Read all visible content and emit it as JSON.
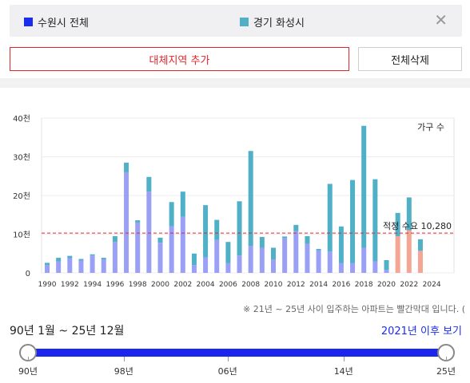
{
  "legend": {
    "items": [
      {
        "label": "수원시 전체",
        "color": "#1a2cf0"
      },
      {
        "label": "경기 화성시",
        "color": "#4fb0c6"
      }
    ],
    "close_icon": "close-icon"
  },
  "buttons": {
    "add_region": "대체지역 추가",
    "delete_all": "전체삭제"
  },
  "chart_data": {
    "type": "bar",
    "unit_label": "가구 수",
    "y_ticks": [
      "40천",
      "30천",
      "20천",
      "10천",
      "0"
    ],
    "ylim": [
      0,
      40000
    ],
    "x_tick_labels": [
      "1990",
      "1992",
      "1994",
      "1996",
      "1998",
      "2000",
      "2002",
      "2004",
      "2006",
      "2008",
      "2010",
      "2012",
      "2014",
      "2016",
      "2018",
      "2020",
      "2022",
      "2024"
    ],
    "years": [
      1990,
      1991,
      1992,
      1993,
      1994,
      1995,
      1996,
      1997,
      1998,
      1999,
      2000,
      2001,
      2002,
      2003,
      2004,
      2005,
      2006,
      2007,
      2008,
      2009,
      2010,
      2011,
      2012,
      2013,
      2014,
      2015,
      2016,
      2017,
      2018,
      2019,
      2020,
      2021,
      2022,
      2023
    ],
    "series": [
      {
        "name": "수원시 전체",
        "color": "#9aa0f5",
        "future_color": "#f4a593",
        "values": [
          2000,
          3000,
          3800,
          3200,
          4500,
          3500,
          8000,
          26000,
          13000,
          21000,
          7800,
          12000,
          14500,
          2000,
          4000,
          8500,
          2500,
          4500,
          7000,
          6500,
          3500,
          9000,
          10800,
          7500,
          5800,
          5500,
          2500,
          2500,
          6500,
          3000,
          800,
          9500,
          11000,
          5700
        ]
      },
      {
        "name": "경기 화성시",
        "color": "#4fb0c6",
        "values": [
          600,
          900,
          600,
          400,
          300,
          400,
          1500,
          2500,
          600,
          3800,
          1300,
          6300,
          6500,
          3000,
          13500,
          5200,
          5500,
          14000,
          24500,
          2800,
          3000,
          400,
          1600,
          2000,
          400,
          17500,
          9500,
          21500,
          31500,
          21200,
          2500,
          6000,
          8500,
          3000
        ]
      }
    ],
    "future_from": 2021,
    "reference_line": {
      "label": "적정 수요 10,280",
      "value": 10280,
      "color": "#e0272b"
    }
  },
  "note": "※ 21년 ~ 25년 사이 입주하는 아파트는 빨간막대 입니다. (",
  "slider": {
    "range_label": "90년 1월 ~ 25년 12월",
    "after_link": "2021년 이후 보기",
    "tick_labels": [
      "90년",
      "98년",
      "06년",
      "14년",
      "25년"
    ]
  }
}
